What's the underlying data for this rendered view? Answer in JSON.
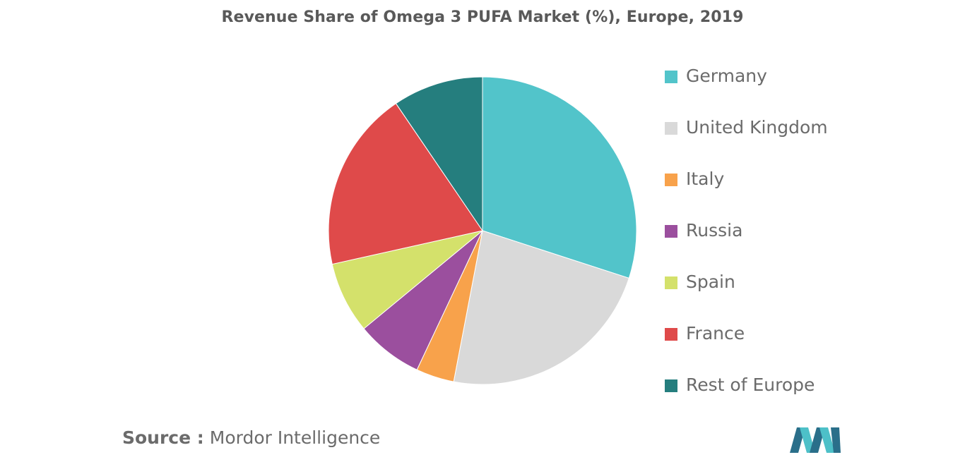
{
  "chart_data": {
    "type": "pie",
    "title": "Revenue Share of Omega 3 PUFA Market (%), Europe, 2019",
    "start_angle_deg": 0,
    "direction": "clockwise",
    "legend_position": "right",
    "slices": [
      {
        "label": "Germany",
        "value": 30.0,
        "color": "#52c4ca"
      },
      {
        "label": "United Kingdom",
        "value": 23.0,
        "color": "#d9d9d9"
      },
      {
        "label": "Italy",
        "value": 4.0,
        "color": "#f8a24b"
      },
      {
        "label": "Russia",
        "value": 7.0,
        "color": "#9b4f9e"
      },
      {
        "label": "Spain",
        "value": 7.5,
        "color": "#d4e16b"
      },
      {
        "label": "France",
        "value": 19.0,
        "color": "#df4a4a"
      },
      {
        "label": "Rest of Europe",
        "value": 9.5,
        "color": "#257e7e"
      }
    ]
  },
  "source": {
    "prefix": "Source :",
    "text": " Mordor Intelligence"
  },
  "logo": {
    "icon": "mordor-intelligence-logo-icon",
    "colors": [
      "#2a6f8a",
      "#4dc0c8"
    ]
  }
}
